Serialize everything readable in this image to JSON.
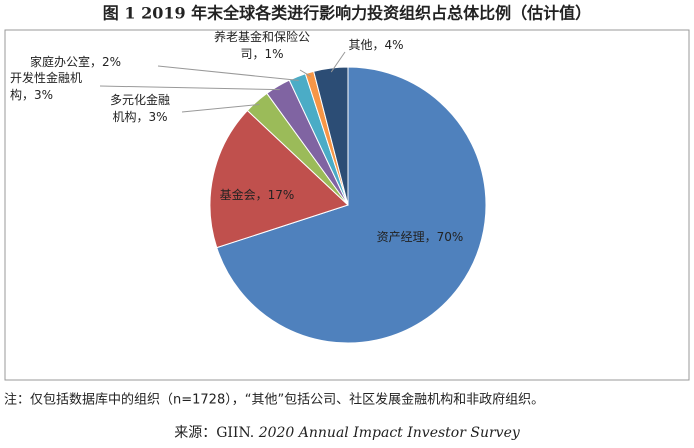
{
  "chart_data": {
    "type": "pie",
    "title": "图 1 2019 年末全球各类进行影响力投资组织占总体比例（估计值）",
    "values": [
      70,
      17,
      3,
      3,
      2,
      1,
      4
    ],
    "value_labels": [
      "资产经理，70%",
      "基金会，17%",
      "多元化金融\n机构，3%",
      "开发性金融机\n构，3%",
      "家庭办公室，2%",
      "养老基金和保险公\n司，1%",
      "其他，4%"
    ],
    "colors": [
      "#4f81bd",
      "#c0504d",
      "#9bbb59",
      "#8064a2",
      "#4bacc6",
      "#f79646",
      "#2c4d75"
    ],
    "note": "注：仅包括数据库中的组织（n=1728），“其他”包括公司、社区发展金融机构和非政府组织。",
    "source": {
      "prefix": "来源：GIIN. ",
      "title": "2020 Annual Impact Investor Survey"
    }
  }
}
